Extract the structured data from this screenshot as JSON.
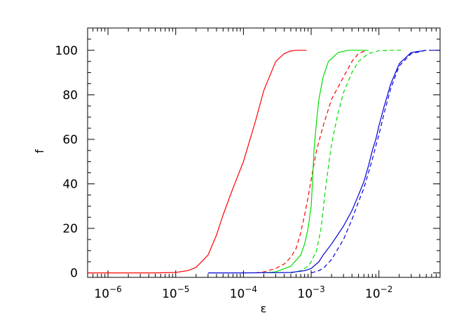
{
  "chart_data": {
    "type": "line",
    "xlabel": "ε",
    "ylabel": "f",
    "x_scale": "log",
    "xlim": [
      5e-07,
      0.08
    ],
    "ylim": [
      -2,
      110
    ],
    "grid": false,
    "legend": "none",
    "x_ticks": [
      {
        "value": 1e-06,
        "base": "10",
        "exp": "−6"
      },
      {
        "value": 1e-05,
        "base": "10",
        "exp": "−5"
      },
      {
        "value": 0.0001,
        "base": "10",
        "exp": "−4"
      },
      {
        "value": 0.001,
        "base": "10",
        "exp": "−3"
      },
      {
        "value": 0.01,
        "base": "10",
        "exp": "−2"
      }
    ],
    "y_ticks": [
      {
        "value": 0,
        "label": "0"
      },
      {
        "value": 20,
        "label": "20"
      },
      {
        "value": 40,
        "label": "40"
      },
      {
        "value": 60,
        "label": "60"
      },
      {
        "value": 80,
        "label": "80"
      },
      {
        "value": 100,
        "label": "100"
      }
    ],
    "series": [
      {
        "color": "#ff0000",
        "style": "solid",
        "x": [
          5e-07,
          1e-06,
          5e-06,
          1e-05,
          1.5e-05,
          2e-05,
          3e-05,
          4e-05,
          5e-05,
          7e-05,
          0.0001,
          0.00015,
          0.0002,
          0.0003,
          0.0004,
          0.0005,
          0.0006,
          0.00085
        ],
        "y": [
          0,
          0,
          0,
          0.2,
          1,
          2.5,
          8,
          17,
          26,
          38,
          50,
          68,
          82,
          95,
          98.5,
          99.7,
          100,
          100
        ]
      },
      {
        "color": "#ff0000",
        "style": "dashed",
        "x": [
          0.00015,
          0.0002,
          0.0003,
          0.0004,
          0.0005,
          0.0006,
          0.0007,
          0.0008,
          0.0009,
          0.001,
          0.0012,
          0.0015,
          0.002,
          0.003,
          0.004,
          0.005,
          0.0065
        ],
        "y": [
          0,
          0.5,
          2,
          4,
          7,
          11,
          18,
          26,
          34,
          42,
          55,
          66,
          78,
          88,
          95,
          98.5,
          100
        ]
      },
      {
        "color": "#00dd00",
        "style": "solid",
        "x": [
          0.0002,
          0.0003,
          0.0005,
          0.0007,
          0.0008,
          0.0009,
          0.001,
          0.00105,
          0.0011,
          0.0012,
          0.0013,
          0.0015,
          0.0018,
          0.0025,
          0.0035,
          0.005,
          0.007
        ],
        "y": [
          0,
          0.5,
          3,
          8,
          13,
          20,
          30,
          42,
          55,
          68,
          78,
          88,
          95,
          99,
          100,
          100,
          100
        ]
      },
      {
        "color": "#00dd00",
        "style": "dashed",
        "x": [
          0.0005,
          0.0007,
          0.0009,
          0.001,
          0.0012,
          0.0014,
          0.0015,
          0.0016,
          0.0018,
          0.002,
          0.0025,
          0.003,
          0.004,
          0.005,
          0.007,
          0.01,
          0.015,
          0.022
        ],
        "y": [
          0,
          1,
          3,
          5,
          10,
          20,
          28,
          36,
          48,
          58,
          72,
          81,
          90,
          95,
          98.5,
          99.8,
          100,
          100
        ]
      },
      {
        "color": "#0000dd",
        "style": "solid",
        "x": [
          3e-05,
          0.0001,
          0.0005,
          0.0008,
          0.001,
          0.0013,
          0.0015,
          0.002,
          0.003,
          0.004,
          0.005,
          0.006,
          0.007,
          0.008,
          0.009,
          0.01,
          0.012,
          0.015,
          0.02,
          0.03,
          0.05
        ],
        "y": [
          0,
          0,
          0.2,
          1,
          2,
          5,
          8,
          13,
          21,
          28,
          35,
          41,
          48,
          55,
          60,
          66,
          75,
          85,
          94,
          99,
          100
        ]
      },
      {
        "color": "#0000dd",
        "style": "dashed",
        "x": [
          0.001,
          0.0013,
          0.0015,
          0.002,
          0.003,
          0.004,
          0.005,
          0.006,
          0.007,
          0.008,
          0.009,
          0.01,
          0.012,
          0.015,
          0.02,
          0.03,
          0.05,
          0.08
        ],
        "y": [
          0,
          1,
          2,
          6,
          15,
          24,
          32,
          38,
          45,
          51,
          57,
          62,
          72,
          83,
          93,
          98.5,
          100,
          100
        ]
      }
    ]
  }
}
